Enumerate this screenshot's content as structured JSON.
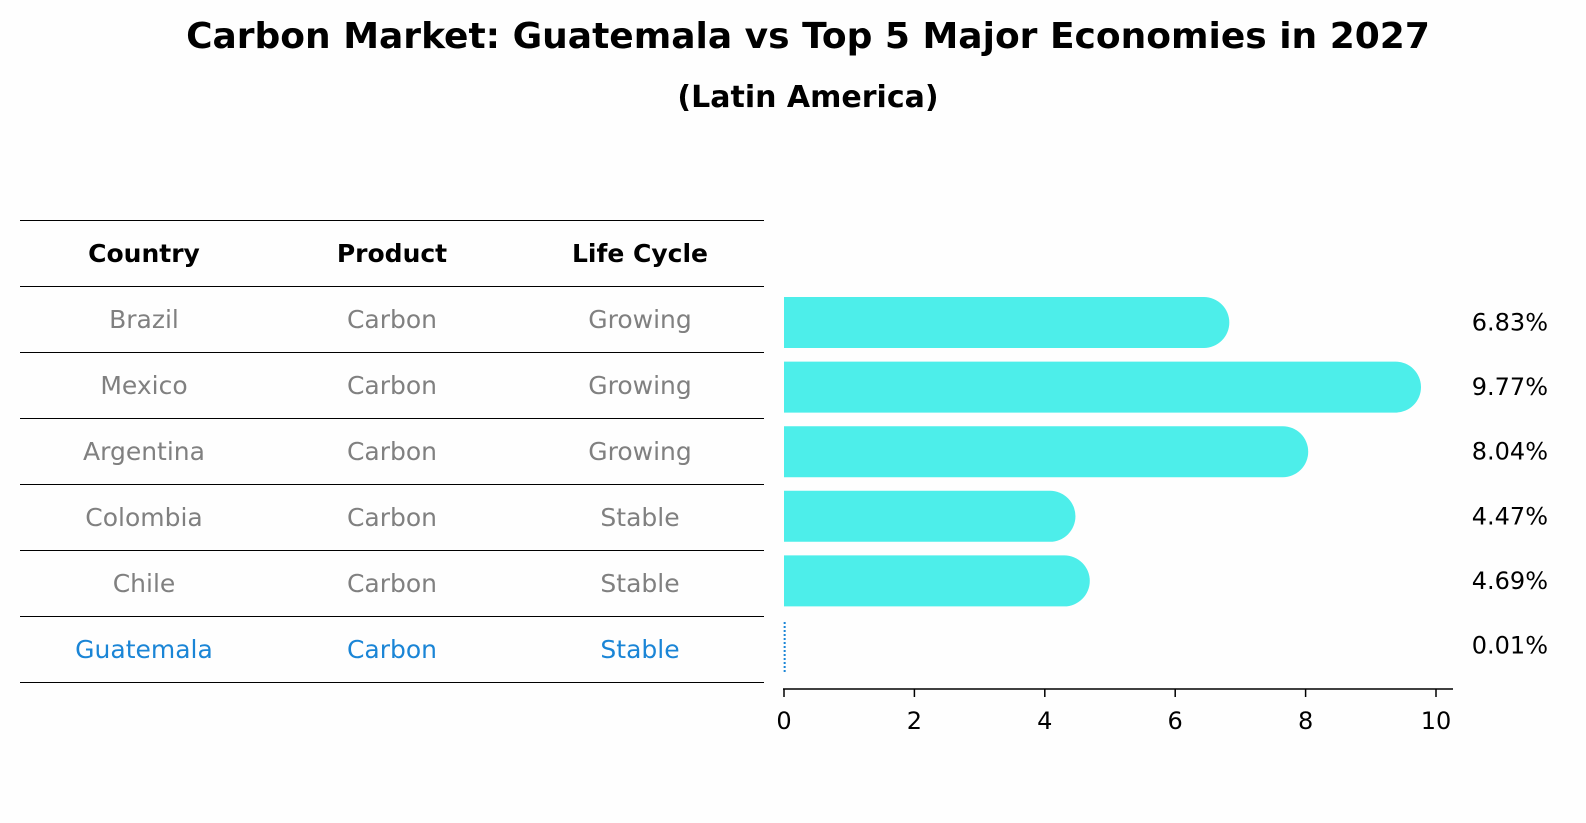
{
  "title": "Carbon Market: Guatemala vs Top 5 Major Economies in 2027",
  "subtitle": "(Latin America)",
  "table": {
    "headers": [
      "Country",
      "Product",
      "Life Cycle"
    ],
    "rows": [
      [
        "Brazil",
        "Carbon",
        "Growing"
      ],
      [
        "Mexico",
        "Carbon",
        "Growing"
      ],
      [
        "Argentina",
        "Carbon",
        "Growing"
      ],
      [
        "Colombia",
        "Carbon",
        "Stable"
      ],
      [
        "Chile",
        "Carbon",
        "Stable"
      ],
      [
        "Guatemala",
        "Carbon",
        "Stable"
      ]
    ],
    "highlight_row": 5
  },
  "colors": {
    "bar": "#4ded eb",
    "highlight": "#1a85d6",
    "muted": "#808080"
  },
  "chart_data": {
    "type": "bar",
    "orientation": "horizontal",
    "categories": [
      "Brazil",
      "Mexico",
      "Argentina",
      "Colombia",
      "Chile",
      "Guatemala"
    ],
    "values": [
      6.83,
      9.77,
      8.04,
      4.47,
      4.69,
      0.01
    ],
    "value_labels": [
      "6.83%",
      "9.77%",
      "8.04%",
      "4.47%",
      "4.69%",
      "0.01%"
    ],
    "xlim": [
      0,
      10.25
    ],
    "xticks": [
      0,
      2,
      4,
      6,
      8,
      10
    ],
    "xlabel": "",
    "ylabel": "",
    "grid": false
  }
}
